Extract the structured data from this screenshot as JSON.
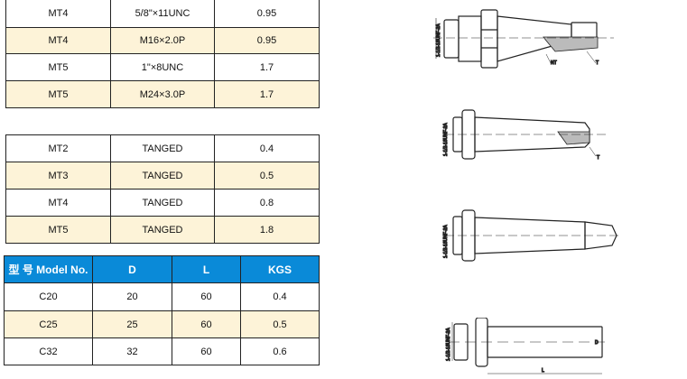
{
  "table1": {
    "rows": [
      [
        "MT4",
        "5/8\"×11UNC",
        "0.95"
      ],
      [
        "MT4",
        "M16×2.0P",
        "0.95"
      ],
      [
        "MT5",
        "1\"×8UNC",
        "1.7"
      ],
      [
        "MT5",
        "M24×3.0P",
        "1.7"
      ]
    ]
  },
  "table2": {
    "rows": [
      [
        "MT2",
        "TANGED",
        "0.4"
      ],
      [
        "MT3",
        "TANGED",
        "0.5"
      ],
      [
        "MT4",
        "TANGED",
        "0.8"
      ],
      [
        "MT5",
        "TANGED",
        "1.8"
      ]
    ]
  },
  "table3": {
    "headers": [
      "型 号 Model No.",
      "D",
      "L",
      "KGS"
    ],
    "rows": [
      [
        "C20",
        "20",
        "60",
        "0.4"
      ],
      [
        "C25",
        "25",
        "60",
        "0.5"
      ],
      [
        "C32",
        "32",
        "60",
        "0.6"
      ]
    ]
  },
  "drawings": {
    "thread_label": "1-1/2-18UNF-2A",
    "nt_label": "NT",
    "t_label": "T",
    "d_label": "D",
    "l_label": "L"
  },
  "colors": {
    "header_bg": "#0a8ad8",
    "alt_row": "#fdf3d8"
  }
}
